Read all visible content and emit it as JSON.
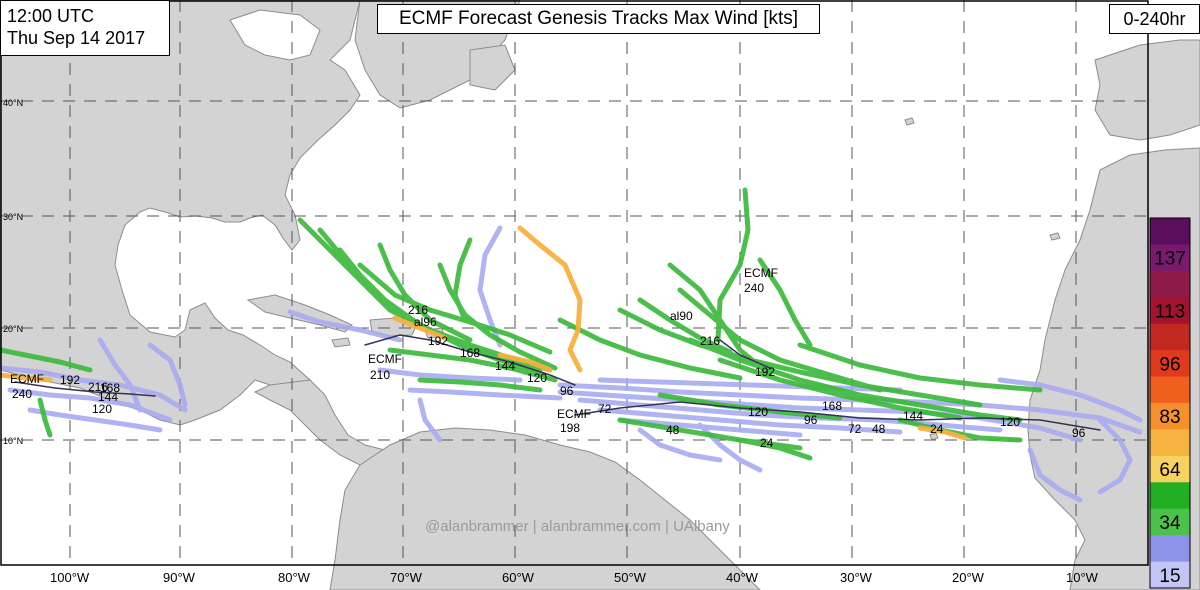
{
  "header": {
    "time": "12:00 UTC",
    "date": "Thu Sep 14 2017",
    "title": "ECMF Forecast Genesis Tracks Max Wind [kts]",
    "range": "0-240hr"
  },
  "credit": "@alanbrammer | alanbrammer.com | UAlbany",
  "axes": {
    "lon_labels": [
      "100°W",
      "90°W",
      "80°W",
      "70°W",
      "60°W",
      "50°W",
      "40°W",
      "30°W",
      "20°W",
      "10°W"
    ],
    "lat_labels": [
      "40°N",
      "30°N",
      "20°N",
      "10°N"
    ]
  },
  "legend": {
    "levels": [
      {
        "label": "",
        "color": "#5a0f5e"
      },
      {
        "label": "137",
        "color": "#7a1a6e"
      },
      {
        "label": "",
        "color": "#8f1b48"
      },
      {
        "label": "113",
        "color": "#a3122f"
      },
      {
        "label": "",
        "color": "#c1281f"
      },
      {
        "label": "96",
        "color": "#e03a1d"
      },
      {
        "label": "",
        "color": "#f0601e"
      },
      {
        "label": "83",
        "color": "#f5902a"
      },
      {
        "label": "",
        "color": "#f7b240"
      },
      {
        "label": "64",
        "color": "#f7d25e"
      },
      {
        "label": "",
        "color": "#22b022"
      },
      {
        "label": "34",
        "color": "#4cc24c"
      },
      {
        "label": "",
        "color": "#8e93ea"
      },
      {
        "label": "15",
        "color": "#c3c6f4"
      }
    ]
  },
  "colors": {
    "ocean": "#ffffff",
    "land": "#d3d3d3",
    "coast": "#8c8c8c",
    "grid": "#555555",
    "ts": "#3cb93c",
    "ts_dark": "#2aa52a",
    "td": "#a8abf0",
    "hurricane": "#f8b040",
    "mean": "#333355"
  },
  "track_labels": [
    {
      "text": "ECMF",
      "group": "ecmf-a"
    },
    {
      "text": "240",
      "group": "ecmf-a"
    },
    {
      "text": "216",
      "group": "west"
    },
    {
      "text": "192",
      "group": "west"
    },
    {
      "text": "168",
      "group": "west"
    },
    {
      "text": "144",
      "group": "west"
    },
    {
      "text": "120",
      "group": "west"
    },
    {
      "text": "ECMF",
      "group": "ecmf-b"
    },
    {
      "text": "210",
      "group": "ecmf-b"
    },
    {
      "text": "216",
      "group": "carib"
    },
    {
      "text": "al96",
      "group": "carib"
    },
    {
      "text": "192",
      "group": "carib"
    },
    {
      "text": "168",
      "group": "carib"
    },
    {
      "text": "144",
      "group": "carib"
    },
    {
      "text": "120",
      "group": "carib"
    },
    {
      "text": "96",
      "group": "carib"
    },
    {
      "text": "ECMF",
      "group": "ecmf-c"
    },
    {
      "text": "198",
      "group": "ecmf-c"
    },
    {
      "text": "72",
      "group": "mdr"
    },
    {
      "text": "48",
      "group": "mdr"
    },
    {
      "text": "120",
      "group": "mdr"
    },
    {
      "text": "24",
      "group": "mdr"
    },
    {
      "text": "168",
      "group": "mdr"
    },
    {
      "text": "96",
      "group": "mdr"
    },
    {
      "text": "72",
      "group": "mdr"
    },
    {
      "text": "48",
      "group": "mdr"
    },
    {
      "text": "144",
      "group": "mdr"
    },
    {
      "text": "24",
      "group": "mdr"
    },
    {
      "text": "120",
      "group": "mdr"
    },
    {
      "text": "96",
      "group": "mdr"
    },
    {
      "text": "ECMF",
      "group": "ecmf-d"
    },
    {
      "text": "240",
      "group": "ecmf-d"
    },
    {
      "text": "216",
      "group": "north"
    },
    {
      "text": "192",
      "group": "north"
    },
    {
      "text": "al90",
      "group": "north"
    }
  ]
}
